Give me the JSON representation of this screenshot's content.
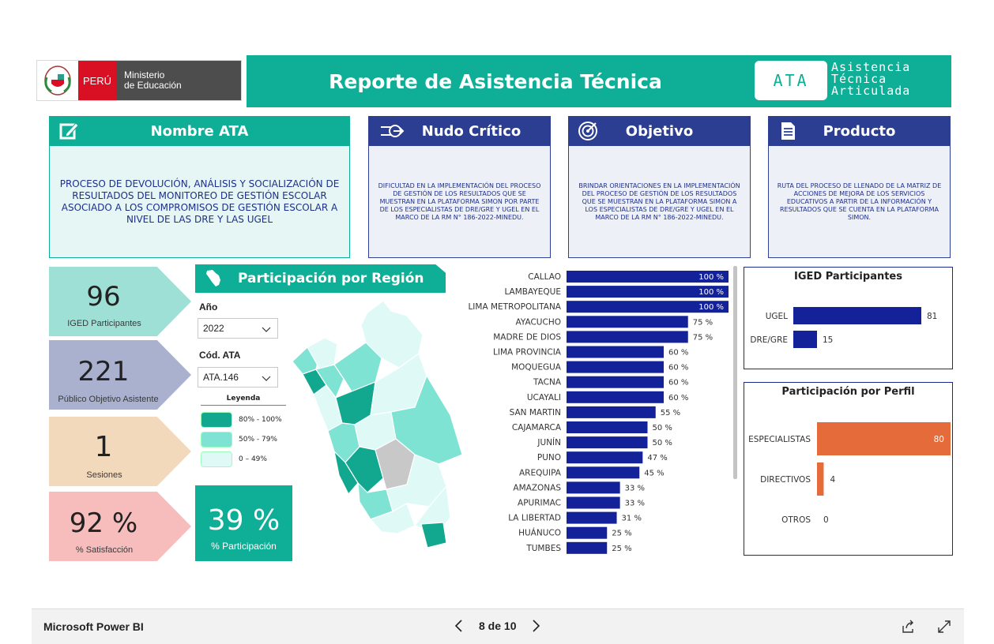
{
  "header": {
    "logo": {
      "country": "PERÚ",
      "ministry_line1": "Ministerio",
      "ministry_line2": "de Educación"
    },
    "title": "Reporte de Asistencia Técnica",
    "badge": "ATA",
    "badge_words": [
      "Asistencia",
      "Técnica",
      "Articulada"
    ]
  },
  "cards": {
    "nombre": {
      "title": "Nombre ATA",
      "icon": "edit-icon",
      "body": "PROCESO DE DEVOLUCIÓN, ANÁLISIS Y SOCIALIZACIÓN DE RESULTADOS DEL MONITOREO DE GESTIÓN ESCOLAR ASOCIADO A LOS COMPROMISOS DE GESTIÓN ESCOLAR A NIVEL DE LAS DRE Y LAS UGEL"
    },
    "nudo": {
      "title": "Nudo Crítico",
      "icon": "arrows-icon",
      "body": "DIFICULTAD EN LA IMPLEMENTACIÓN DEL PROCESO DE GESTIÓN DE LOS RESULTADOS QUE SE MUESTRAN EN LA PLATAFORMA SIMON POR PARTE DE LOS ESPECIALISTAS DE DRE/GRE Y UGEL EN EL MARCO DE LA RM N° 186-2022-MINEDU."
    },
    "objetivo": {
      "title": "Objetivo",
      "icon": "target-icon",
      "body": "BRINDAR ORIENTACIONES EN LA IMPLEMENTACIÓN DEL PROCESO DE GESTIÓN DE LOS RESULTADOS QUE SE MUESTRAN EN LA PLATAFORMA SIMON A LOS ESPECIALISTAS DE DRE/GRE Y UGEL EN EL MARCO DE LA RM N° 186-2022-MINEDU."
    },
    "producto": {
      "title": "Producto",
      "icon": "document-icon",
      "body": "RUTA DEL PROCESO DE LLENADO DE LA MATRIZ DE ACCIONES DE MEJORA DE LOS SERVICIOS EDUCATIVOS A PARTIR DE LA INFORMACIÓN Y RESULTADOS QUE SE CUENTA EN LA PLATAFORMA SIMON."
    }
  },
  "kpis": [
    {
      "value": "96",
      "label": "IGED Participantes",
      "color": "#9ee0d6"
    },
    {
      "value": "221",
      "label": "Público Objetivo Asistente",
      "color": "#a9b1cf"
    },
    {
      "value": "1",
      "label": "Sesiones",
      "color": "#f3d9bc"
    },
    {
      "value": "92 %",
      "label": "% Satisfacción",
      "color": "#f7bcbc"
    }
  ],
  "region": {
    "title": "Participación por Región",
    "filters": {
      "anio": {
        "label": "Año",
        "value": "2022"
      },
      "cod": {
        "label": "Cód. ATA",
        "value": "ATA.146"
      }
    },
    "legend": {
      "title": "Leyenda",
      "items": [
        {
          "label": "80% - 100%",
          "color": "#12a890"
        },
        {
          "label": "50% - 79%",
          "color": "#7fe3d4"
        },
        {
          "label": "0 – 49%",
          "color": "#dffaf6"
        }
      ]
    },
    "participation": {
      "value": "39 %",
      "label": "% Participación"
    }
  },
  "chart_data": [
    {
      "type": "bar",
      "orientation": "horizontal",
      "title": "",
      "categories": [
        "CALLAO",
        "LAMBAYEQUE",
        "LIMA METROPOLITANA",
        "AYACUCHO",
        "MADRE DE DIOS",
        "LIMA PROVINCIA",
        "MOQUEGUA",
        "TACNA",
        "UCAYALI",
        "SAN MARTIN",
        "CAJAMARCA",
        "JUNÍN",
        "PUNO",
        "AREQUIPA",
        "AMAZONAS",
        "APURIMAC",
        "LA LIBERTAD",
        "HUÁNUCO",
        "TUMBES"
      ],
      "values": [
        100,
        100,
        100,
        75,
        75,
        60,
        60,
        60,
        60,
        55,
        50,
        50,
        47,
        45,
        33,
        33,
        31,
        25,
        25
      ],
      "unit": "%",
      "xlim": [
        0,
        100
      ],
      "color": "#14229a"
    },
    {
      "type": "bar",
      "orientation": "horizontal",
      "title": "IGED Participantes",
      "categories": [
        "UGEL",
        "DRE/GRE"
      ],
      "values": [
        81,
        15
      ],
      "color": "#14229a"
    },
    {
      "type": "bar",
      "orientation": "horizontal",
      "title": "Participación por Perfil",
      "categories": [
        "ESPECIALISTAS",
        "DIRECTIVOS",
        "OTROS"
      ],
      "values": [
        80,
        4,
        0
      ],
      "color": "#e56b3a"
    }
  ],
  "footer": {
    "app": "Microsoft Power BI",
    "page": "8 de 10",
    "icons": [
      "share-icon",
      "expand-icon"
    ]
  }
}
